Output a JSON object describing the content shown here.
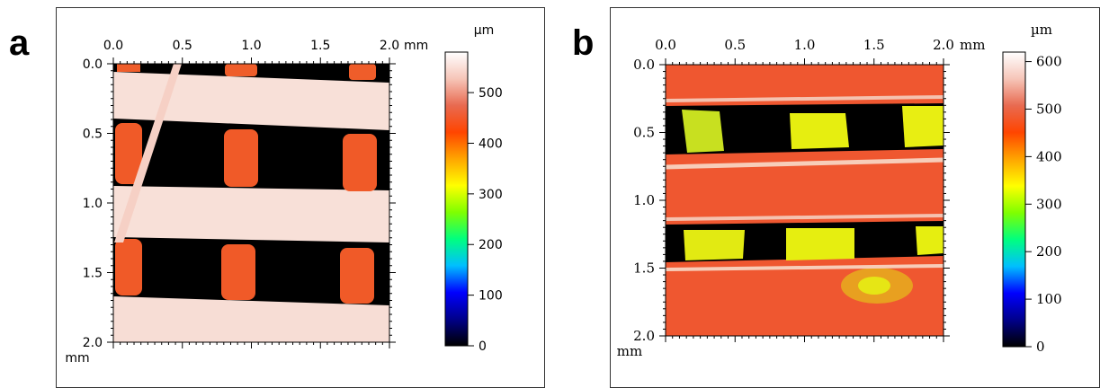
{
  "chart_data": [
    {
      "type": "heatmap",
      "panel_label": "a",
      "x_ticks": [
        "0.0",
        "0.5",
        "1.0",
        "1.5",
        "2.0"
      ],
      "x_unit": "mm",
      "y_ticks": [
        "0.0",
        "0.5",
        "1.0",
        "1.5",
        "2.0"
      ],
      "y_unit": "mm",
      "xlim": [
        0,
        2
      ],
      "ylim": [
        0,
        2
      ],
      "colorbar": {
        "unit": "µm",
        "ticks": [
          0,
          100,
          200,
          300,
          400,
          500
        ],
        "tick_labels": [
          "0",
          "100",
          "200",
          "300",
          "400",
          "500"
        ],
        "range": [
          0,
          580
        ],
        "colors": [
          "#000000",
          "#00008b",
          "#0000ff",
          "#00bfff",
          "#00ff7f",
          "#7fff00",
          "#ffff00",
          "#ffa500",
          "#ff4500",
          "#e86a50",
          "#f6c5b8",
          "#ffffff"
        ]
      },
      "regions": {
        "bands_um": 555,
        "gap_um": 0,
        "pillars_um": 470,
        "fiber_um": 570
      }
    },
    {
      "type": "heatmap",
      "panel_label": "b",
      "x_ticks": [
        "0.0",
        "0.5",
        "1.0",
        "1.5",
        "2.0"
      ],
      "x_unit": "mm",
      "y_ticks": [
        "0.0",
        "0.5",
        "1.0",
        "1.5",
        "2.0"
      ],
      "y_unit": "mm",
      "xlim": [
        0,
        2
      ],
      "ylim": [
        0,
        2
      ],
      "colorbar": {
        "unit": "µm",
        "ticks": [
          0,
          100,
          200,
          300,
          400,
          500,
          600
        ],
        "tick_labels": [
          "0",
          "100",
          "200",
          "300",
          "400",
          "500",
          "600"
        ],
        "range": [
          0,
          620
        ],
        "colors": [
          "#000000",
          "#00008b",
          "#0000ff",
          "#00bfff",
          "#00ff7f",
          "#7fff00",
          "#ffff00",
          "#ffa500",
          "#ff4500",
          "#e86a50",
          "#f6c5b8",
          "#ffffff"
        ]
      },
      "regions": {
        "background_um": 490,
        "gap_um": 0,
        "yellow_um": 380
      }
    }
  ]
}
